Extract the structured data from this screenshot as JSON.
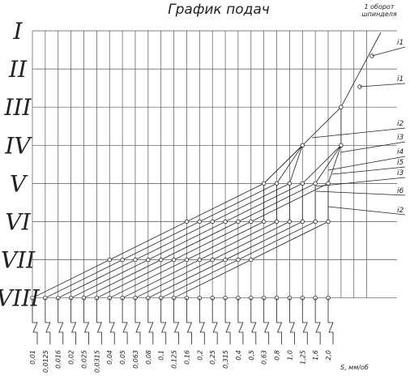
{
  "header": {
    "title": "График подач",
    "note": [
      "1 оборот",
      "шпинделя"
    ]
  },
  "levels": [
    "I",
    "II",
    "III",
    "IV",
    "V",
    "VI",
    "VII",
    "VIII"
  ],
  "feeds": [
    "0,01",
    "0,0125",
    "0,016",
    "0,02",
    "0,025",
    "0,0315",
    "0,04",
    "0,05",
    "0,063",
    "0,08",
    "0,1",
    "0,125",
    "0,16",
    "0,2",
    "0,25",
    "0,315",
    "0,4",
    "0,5",
    "0,63",
    "0,8",
    "1,0",
    "1,25",
    "1,6",
    "2,0"
  ],
  "units": "S, мм/об",
  "ratios": [
    "i1",
    "i1",
    "i2",
    "i3",
    "i4",
    "i5",
    "i3",
    "i6",
    "i2"
  ]
}
